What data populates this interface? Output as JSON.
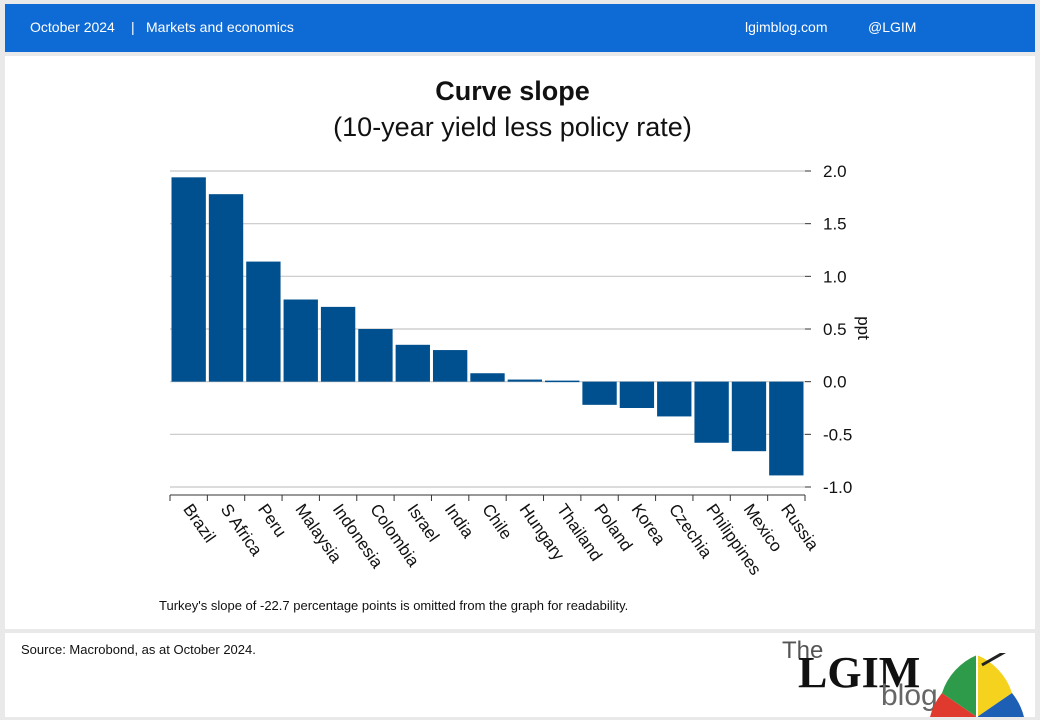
{
  "header": {
    "date": "October 2024",
    "separator": "|",
    "section": "Markets and economics",
    "site": "lgimblog.com",
    "handle": "@LGIM"
  },
  "colors": {
    "header_bar": "#0e6ad4",
    "bar_fill": "#00508f",
    "logo_red": "#e03a2f",
    "logo_green": "#2e9b4a",
    "logo_yellow": "#f4d21e",
    "logo_blue": "#1d5fb4"
  },
  "footer": {
    "source": "Source: Macrobond,  as at October 2024.",
    "logo": {
      "the": "The",
      "brand": "LGIM",
      "blog": "blog"
    }
  },
  "chart_data": {
    "type": "bar",
    "title": "Curve slope",
    "subtitle": "(10-year yield less policy rate)",
    "ylabel": "ppt",
    "ylim": [
      -1.0,
      2.0
    ],
    "yticks": [
      2.0,
      1.5,
      1.0,
      0.5,
      0.0,
      -0.5,
      -1.0
    ],
    "ytick_labels": [
      "2.0",
      "1.5",
      "1.0",
      "0.5",
      "0.0",
      "-0.5",
      "-1.0"
    ],
    "grid": true,
    "categories": [
      "Brazil",
      "S Africa",
      "Peru",
      "Malaysia",
      "Indonesia",
      "Colombia",
      "Israel",
      "India",
      "Chile",
      "Hungary",
      "Thailand",
      "Poland",
      "Korea",
      "Czechia",
      "Philippines",
      "Mexico",
      "Russia"
    ],
    "values": [
      1.94,
      1.78,
      1.14,
      0.78,
      0.71,
      0.5,
      0.35,
      0.3,
      0.08,
      0.02,
      0.01,
      -0.22,
      -0.25,
      -0.33,
      -0.58,
      -0.66,
      -0.89
    ],
    "note": "Turkey's slope of -22.7 percentage points is omitted from the graph for readability."
  }
}
